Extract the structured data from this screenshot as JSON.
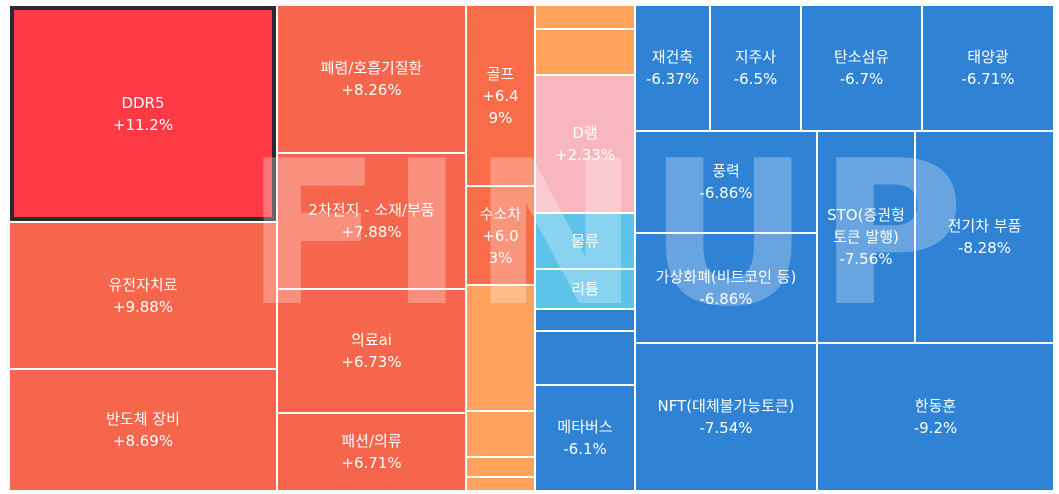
{
  "watermark": "FINUP",
  "chart_data": {
    "type": "treemap",
    "colors": {
      "strong_red": "#ff3a45",
      "red": "#f5664c",
      "orange_red": "#f86c4a",
      "orange": "#ffa35c",
      "pink": "#f8b7be",
      "sky": "#5ec3ea",
      "blue": "#2f82d4",
      "selected_border": "#2b2b2b"
    },
    "tiles": [
      {
        "name": "DDR5",
        "change": "+11.2%",
        "color": "#ff3a45",
        "selected": true
      },
      {
        "name": "유전자치료",
        "change": "+9.88%",
        "color": "#f5664c"
      },
      {
        "name": "반도체 장비",
        "change": "+8.69%",
        "color": "#f5664c"
      },
      {
        "name": "폐렴/호흡기질환",
        "change": "+8.26%",
        "color": "#f5664c"
      },
      {
        "name": "2차전지 - 소재/부품",
        "change": "+7.88%",
        "color": "#f5664c"
      },
      {
        "name": "의료ai",
        "change": "+6.73%",
        "color": "#f5664c"
      },
      {
        "name": "패션/의류",
        "change": "+6.71%",
        "color": "#f5664c"
      },
      {
        "name": "골프",
        "change": "+6.4\n9%",
        "color": "#f86c4a"
      },
      {
        "name": "수소차",
        "change": "+6.0\n3%",
        "color": "#f86c4a"
      },
      {
        "name": "",
        "change": "",
        "color": "#ffa35c"
      },
      {
        "name": "",
        "change": "",
        "color": "#ffa35c"
      },
      {
        "name": "",
        "change": "",
        "color": "#ffa35c"
      },
      {
        "name": "",
        "change": "",
        "color": "#ffa35c"
      },
      {
        "name": "",
        "change": "",
        "color": "#ffa35c"
      },
      {
        "name": "",
        "change": "",
        "color": "#ffa35c"
      },
      {
        "name": "",
        "change": "",
        "color": "#ffa35c"
      },
      {
        "name": "D램",
        "change": "+2.33%",
        "color": "#f8b7be"
      },
      {
        "name": "물류",
        "change": "",
        "color": "#5ec3ea"
      },
      {
        "name": "리튬",
        "change": "",
        "color": "#5ec3ea"
      },
      {
        "name": "",
        "change": "",
        "color": "#2f82d4"
      },
      {
        "name": "",
        "change": "",
        "color": "#2f82d4"
      },
      {
        "name": "메타버스",
        "change": "-6.1%",
        "color": "#2f82d4"
      },
      {
        "name": "재건축",
        "change": "-6.37%",
        "color": "#2f82d4"
      },
      {
        "name": "지주사",
        "change": "-6.5%",
        "color": "#2f82d4"
      },
      {
        "name": "탄소섬유",
        "change": "-6.7%",
        "color": "#2f82d4"
      },
      {
        "name": "태양광",
        "change": "-6.71%",
        "color": "#2f82d4"
      },
      {
        "name": "풍력",
        "change": "-6.86%",
        "color": "#2f82d4"
      },
      {
        "name": "가상화폐(비트코인 등)",
        "change": "-6.86%",
        "color": "#2f82d4"
      },
      {
        "name": "STO(증권형\n토큰 발행)",
        "change": "-7.56%",
        "color": "#2f82d4"
      },
      {
        "name": "전기차 부품",
        "change": "-8.28%",
        "color": "#2f82d4"
      },
      {
        "name": "NFT(대체불가능토큰)",
        "change": "-7.54%",
        "color": "#2f82d4"
      },
      {
        "name": "한동훈",
        "change": "-9.2%",
        "color": "#2f82d4"
      }
    ]
  }
}
